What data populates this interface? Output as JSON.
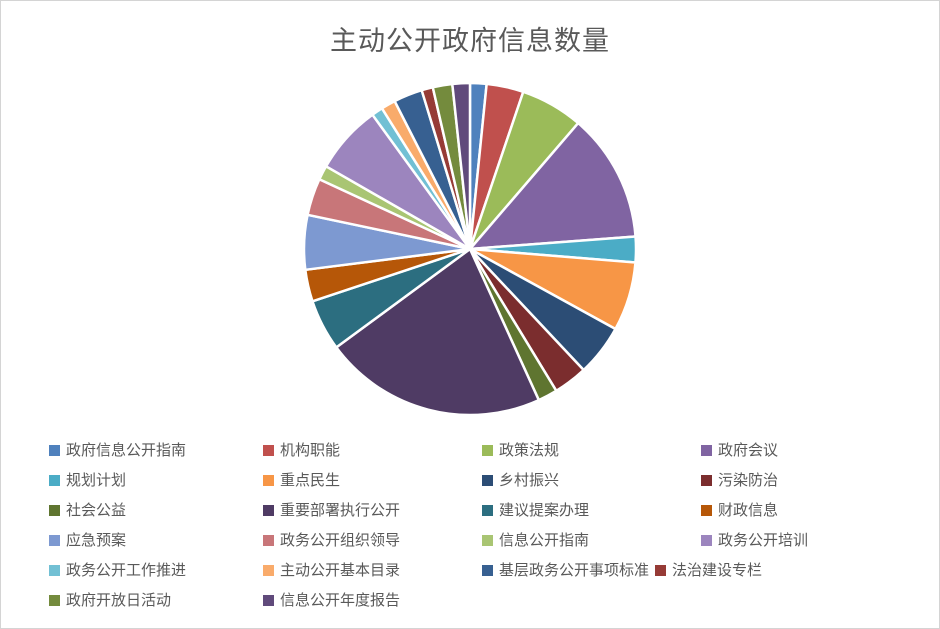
{
  "chart_data": {
    "type": "pie",
    "title": "主动公开政府信息数量",
    "title_color": "#595959",
    "legend_position": "bottom",
    "legend_text_color": "#595959",
    "direction": "clockwise",
    "start_angle_deg": 0,
    "grid": false,
    "data_labels_shown": false,
    "values_unit": "percent (estimated from slice angles; no labels visible)",
    "slice_border_color": "#ffffff",
    "categories": [
      "政府信息公开指南",
      "机构职能",
      "政策法规",
      "政府会议",
      "规划计划",
      "重点民生",
      "乡村振兴",
      "污染防治",
      "社会公益",
      "重要部署执行公开",
      "建议提案办理",
      "财政信息",
      "应急预案",
      "政务公开组织领导",
      "信息公开指南",
      "政务公开培训",
      "政务公开工作推进",
      "主动公开基本目录",
      "基层政务公开事项标准",
      "法治建设专栏",
      "政府开放日活动",
      "信息公开年度报告"
    ],
    "values": [
      1.6,
      3.6,
      6.1,
      12.5,
      2.5,
      6.7,
      5.0,
      3.3,
      1.9,
      21.7,
      5.0,
      3.1,
      5.3,
      3.6,
      1.4,
      6.7,
      1.1,
      1.4,
      2.8,
      1.1,
      1.9,
      1.7
    ],
    "colors": [
      "#4F81BD",
      "#C0504D",
      "#9BBB59",
      "#8064A2",
      "#4BACC6",
      "#F79646",
      "#2C4D75",
      "#7B2D2E",
      "#5F7530",
      "#4F3B64",
      "#2C6E80",
      "#B65708",
      "#7D99D1",
      "#C87679",
      "#A9C573",
      "#9C85BE",
      "#72C0D4",
      "#F9AB6B",
      "#376091",
      "#963B36",
      "#748B3D",
      "#604A7B"
    ]
  }
}
